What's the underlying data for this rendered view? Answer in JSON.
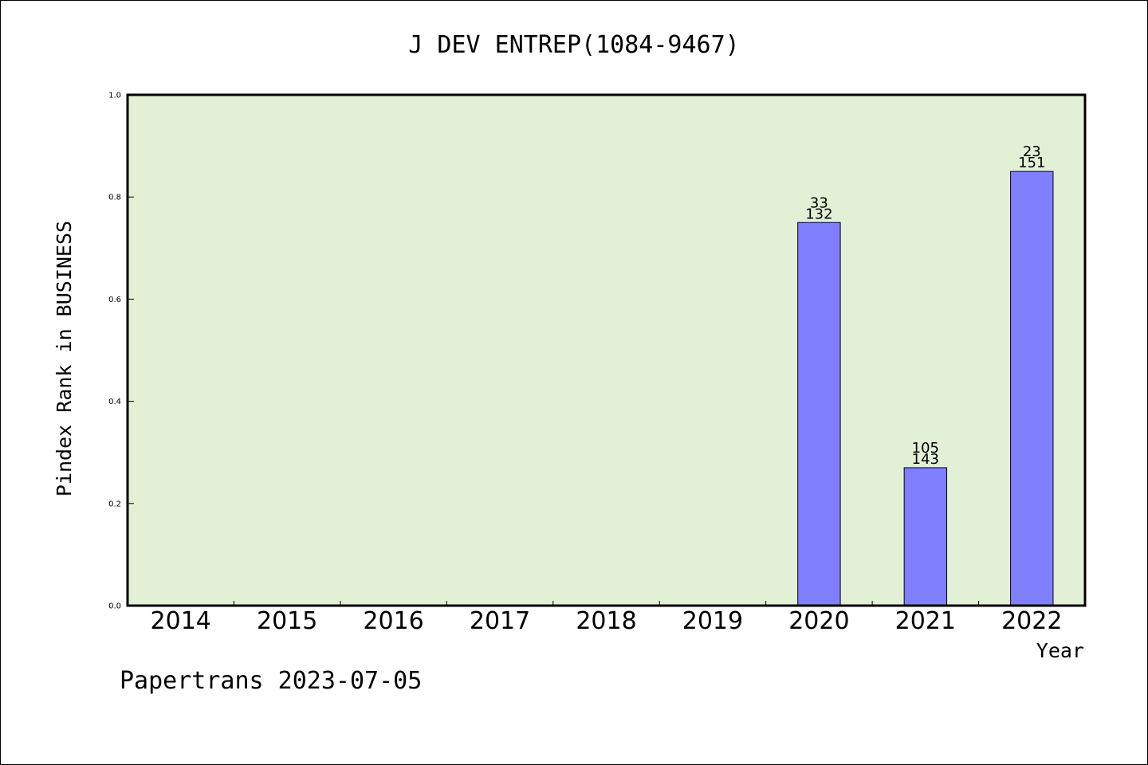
{
  "chart_data": {
    "type": "bar",
    "title": "J DEV ENTREP(1084-9467)",
    "xlabel": "Year",
    "ylabel": "Pindex Rank in BUSINESS",
    "ylim": [
      0,
      1.0
    ],
    "yticks": [
      "0.0",
      "0.2",
      "0.4",
      "0.6",
      "0.8",
      "1.0"
    ],
    "categories": [
      "2014",
      "2015",
      "2016",
      "2017",
      "2018",
      "2019",
      "2020",
      "2021",
      "2022"
    ],
    "values": [
      null,
      null,
      null,
      null,
      null,
      null,
      0.75,
      0.27,
      0.85
    ],
    "bar_labels": [
      null,
      null,
      null,
      null,
      null,
      null,
      {
        "rank": "33",
        "total": "132"
      },
      {
        "rank": "105",
        "total": "143"
      },
      {
        "rank": "23",
        "total": "151"
      }
    ],
    "grid": false,
    "colors": {
      "plot_background": "#e2f0d6",
      "bar_fill": "#8080ff",
      "bar_stroke": "#000000"
    }
  },
  "footer": {
    "text": "Papertrans 2023-07-05"
  }
}
